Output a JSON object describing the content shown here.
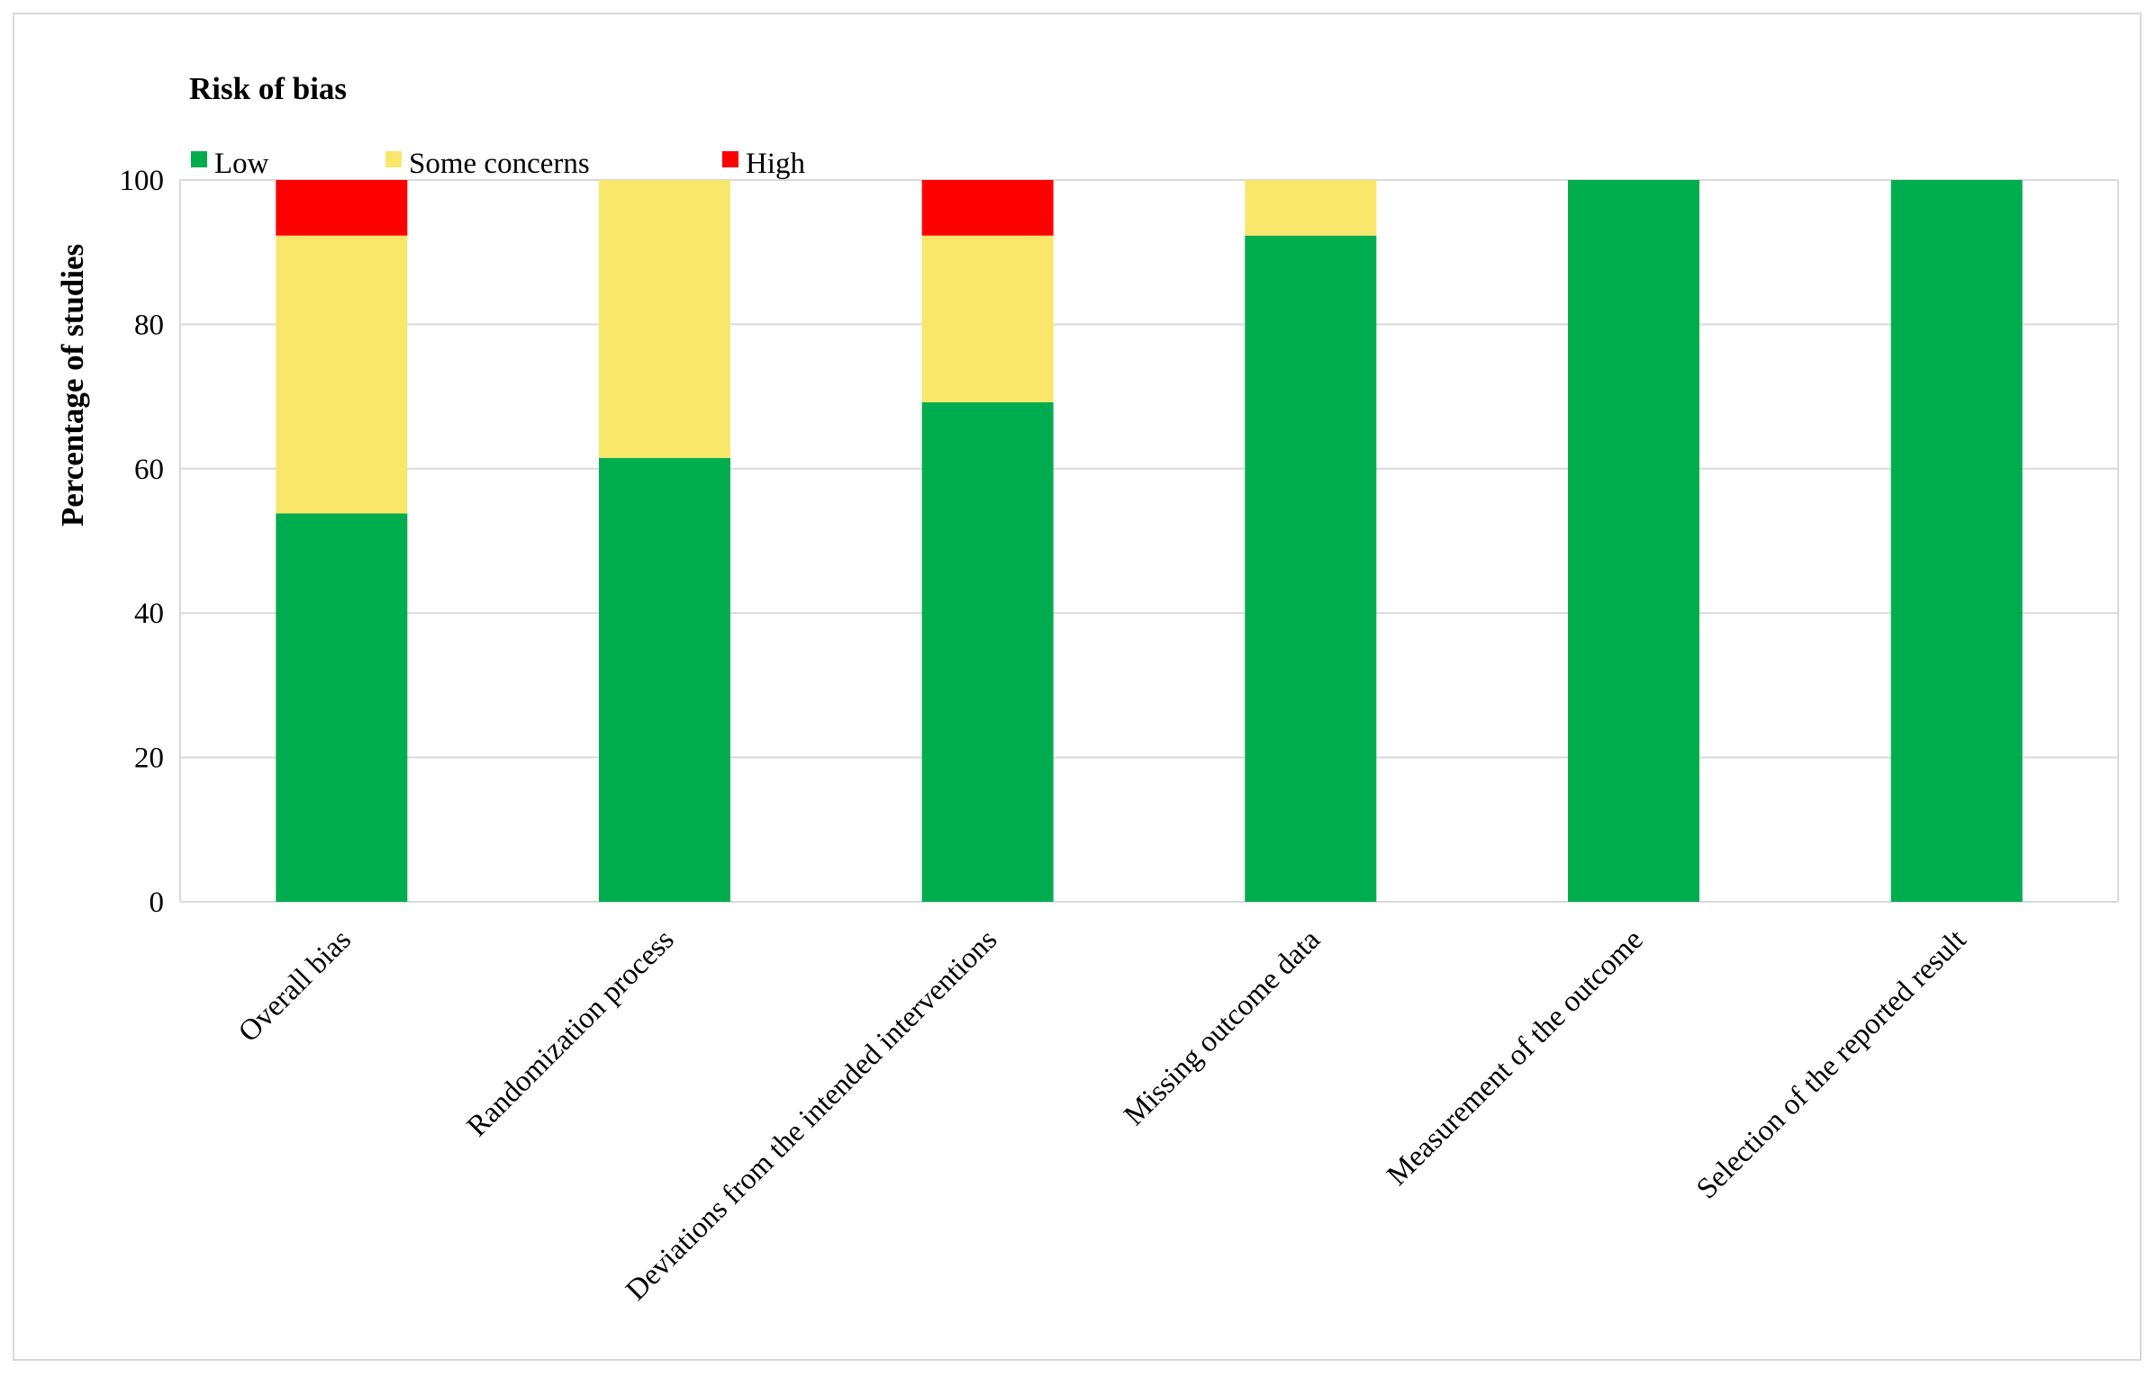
{
  "chart_data": {
    "type": "bar",
    "stacked": true,
    "title": "Risk of bias",
    "xlabel": "",
    "ylabel": "Percentage of studies",
    "ylim": [
      0,
      100
    ],
    "yticks": [
      0,
      20,
      40,
      60,
      80,
      100
    ],
    "grid": true,
    "legend_position": "top-left",
    "categories": [
      "Overall bias",
      "Randomization process",
      "Deviations from the intended interventions",
      "Missing outcome data",
      "Measurement of the outcome",
      "Selection of the reported result"
    ],
    "series": [
      {
        "name": "Low",
        "color": "#00AD4E",
        "values": [
          53.8,
          61.5,
          69.2,
          92.3,
          100,
          100
        ]
      },
      {
        "name": "Some concerns",
        "color": "#F8E76B",
        "values": [
          38.5,
          38.5,
          23.1,
          7.7,
          0,
          0
        ]
      },
      {
        "name": "High",
        "color": "#FF0000",
        "values": [
          7.7,
          0,
          7.7,
          0,
          0,
          0
        ]
      }
    ]
  },
  "colors": {
    "grid": "#d9d9d9",
    "text": "#000000",
    "border": "#d9d9d9"
  }
}
